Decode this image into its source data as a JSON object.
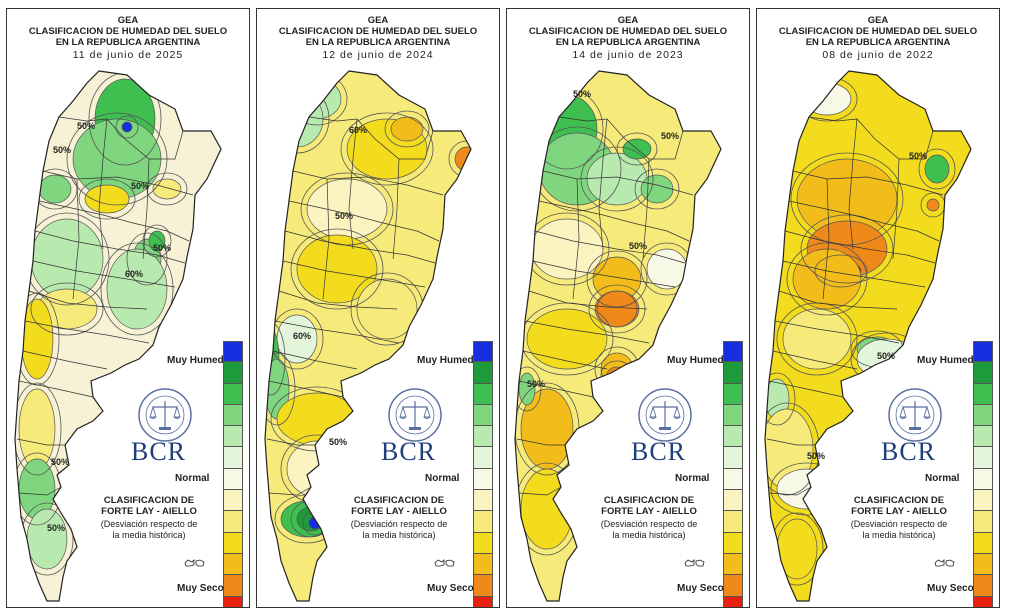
{
  "header_org": "GEA",
  "header_title_1": "CLASIFICACION DE HUMEDAD DEL SUELO",
  "header_title_2": "EN LA REPUBLICA ARGENTINA",
  "maps": [
    {
      "date": "11 de junio de 2025",
      "contour_labels": [
        "50%",
        "50%",
        "50%",
        "50%",
        "60%",
        "50%",
        "50%"
      ]
    },
    {
      "date": "12 de junio de 2024",
      "contour_labels": [
        "60%",
        "50%",
        "60%",
        "50%"
      ]
    },
    {
      "date": "14 de junio de 2023",
      "contour_labels": [
        "50%",
        "50%",
        "50%",
        "50%"
      ]
    },
    {
      "date": "08 de junio de 2022",
      "contour_labels": [
        "50%",
        "50%",
        "50%"
      ]
    }
  ],
  "legend": {
    "top_label": "Muy Humedo",
    "middle_label": "Normal",
    "bottom_label": "Muy Seco",
    "colors": [
      "#1530e0",
      "#1f9a3a",
      "#3fbf4f",
      "#7fd67f",
      "#b8eab0",
      "#e3f6dc",
      "#f7f8e6",
      "#fbf3c0",
      "#f6eb7a",
      "#f2dc1d",
      "#f2bc1a",
      "#ef8a1a",
      "#e8200f"
    ]
  },
  "logo_text": "BCR",
  "classification": {
    "title_1": "CLASIFICACION DE",
    "title_2": "FORTE LAY - AIELLO",
    "subtitle_1": "(Desviación respecto de",
    "subtitle_2": "la media histórica)"
  }
}
